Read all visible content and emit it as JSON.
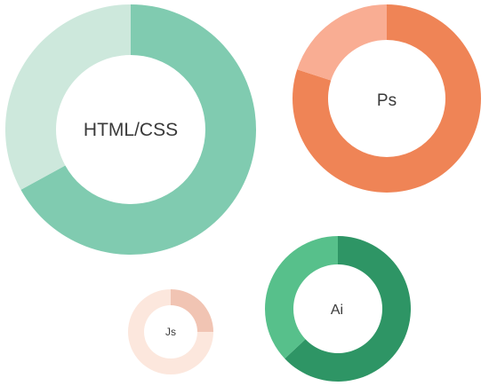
{
  "chart_data": [
    {
      "type": "pie",
      "variant": "donut",
      "center_label": "HTML/CSS",
      "values": [
        67,
        33
      ],
      "colors": [
        "#80cbb0",
        "#cde8dc"
      ]
    },
    {
      "type": "pie",
      "variant": "donut",
      "center_label": "Ps",
      "values": [
        80,
        20
      ],
      "colors": [
        "#ef8456",
        "#f9ad93"
      ]
    },
    {
      "type": "pie",
      "variant": "donut",
      "center_label": "Ai",
      "values": [
        63,
        37
      ],
      "colors": [
        "#2e9565",
        "#57c08b"
      ]
    },
    {
      "type": "pie",
      "variant": "donut",
      "center_label": "Js",
      "values": [
        25,
        75
      ],
      "colors": [
        "#f1c4b3",
        "#fce7dd"
      ]
    }
  ]
}
